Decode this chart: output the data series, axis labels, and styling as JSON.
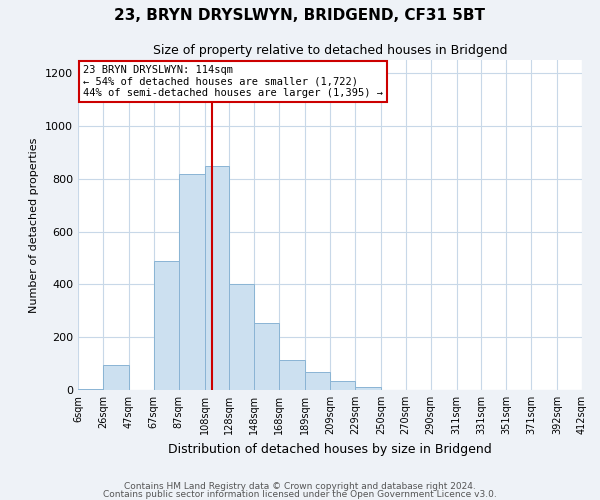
{
  "title": "23, BRYN DRYSLWYN, BRIDGEND, CF31 5BT",
  "subtitle": "Size of property relative to detached houses in Bridgend",
  "xlabel": "Distribution of detached houses by size in Bridgend",
  "ylabel": "Number of detached properties",
  "bar_color": "#cce0f0",
  "bar_edge_color": "#8ab4d4",
  "vline_x": 114,
  "vline_color": "#cc0000",
  "annotation_lines": [
    "23 BRYN DRYSLWYN: 114sqm",
    "← 54% of detached houses are smaller (1,722)",
    "44% of semi-detached houses are larger (1,395) →"
  ],
  "annotation_box_edge": "#cc0000",
  "bins": [
    6,
    26,
    47,
    67,
    87,
    108,
    128,
    148,
    168,
    189,
    209,
    229,
    250,
    270,
    290,
    311,
    331,
    351,
    371,
    392,
    412
  ],
  "bin_labels": [
    "6sqm",
    "26sqm",
    "47sqm",
    "67sqm",
    "87sqm",
    "108sqm",
    "128sqm",
    "148sqm",
    "168sqm",
    "189sqm",
    "209sqm",
    "229sqm",
    "250sqm",
    "270sqm",
    "290sqm",
    "311sqm",
    "331sqm",
    "351sqm",
    "371sqm",
    "392sqm",
    "412sqm"
  ],
  "bar_heights": [
    5,
    95,
    0,
    490,
    820,
    850,
    400,
    255,
    115,
    70,
    35,
    10,
    0,
    0,
    0,
    0,
    0,
    0,
    0,
    0
  ],
  "ylim": [
    0,
    1250
  ],
  "yticks": [
    0,
    200,
    400,
    600,
    800,
    1000,
    1200
  ],
  "footnote1": "Contains HM Land Registry data © Crown copyright and database right 2024.",
  "footnote2": "Contains public sector information licensed under the Open Government Licence v3.0.",
  "bg_color": "#eef2f7",
  "plot_bg_color": "#ffffff",
  "grid_color": "#c8d8e8"
}
